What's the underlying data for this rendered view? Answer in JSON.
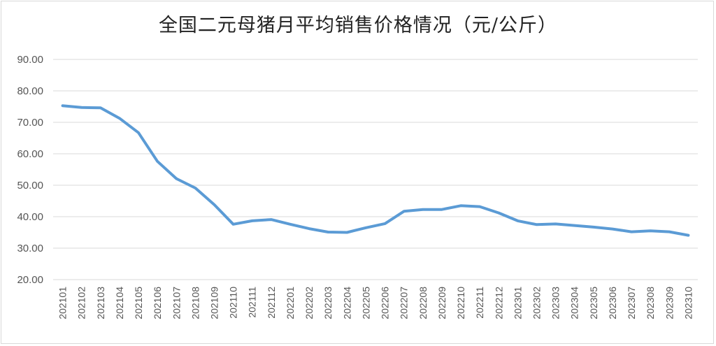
{
  "chart_data": {
    "type": "line",
    "title": "全国二元母猪月平均销售价格情况（元/公斤）",
    "xlabel": "",
    "ylabel": "",
    "ylim": [
      20,
      90
    ],
    "yticks": [
      "20.00",
      "30.00",
      "40.00",
      "50.00",
      "60.00",
      "70.00",
      "80.00",
      "90.00"
    ],
    "grid": true,
    "line_color": "#5b9bd5",
    "categories": [
      "202101",
      "202102",
      "202103",
      "202104",
      "202105",
      "202106",
      "202107",
      "202108",
      "202109",
      "202110",
      "202111",
      "202112",
      "202201",
      "202202",
      "202203",
      "202204",
      "202205",
      "202206",
      "202207",
      "202208",
      "202209",
      "202210",
      "202211",
      "202212",
      "202301",
      "202302",
      "202303",
      "202304",
      "202305",
      "202306",
      "202307",
      "202308",
      "202309",
      "202310"
    ],
    "values": [
      75.3,
      74.7,
      74.6,
      71.3,
      66.7,
      57.6,
      52.1,
      49.1,
      43.8,
      37.6,
      38.7,
      39.1,
      37.6,
      36.2,
      35.1,
      35.0,
      36.5,
      37.8,
      41.7,
      42.3,
      42.3,
      43.5,
      43.2,
      41.2,
      38.7,
      37.5,
      37.7,
      37.2,
      36.7,
      36.1,
      35.2,
      35.5,
      35.2,
      34.1
    ]
  }
}
